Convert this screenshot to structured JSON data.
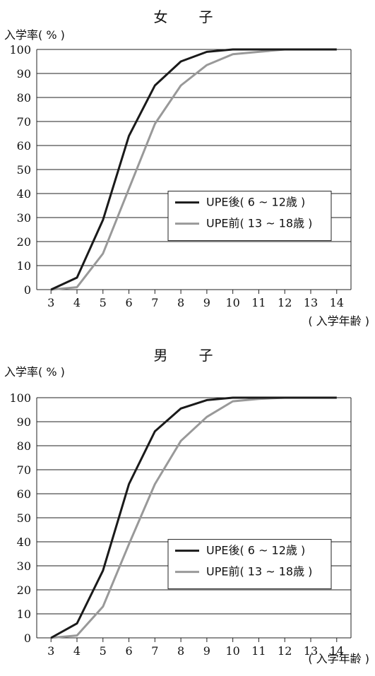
{
  "chart_data": [
    {
      "id": "female",
      "type": "line",
      "title": "女　子",
      "ylabel": "入学率( % )",
      "xlabel": "( 入学年齢 )",
      "ylim": [
        0,
        100
      ],
      "yticks": [
        0,
        10,
        20,
        30,
        40,
        50,
        60,
        70,
        80,
        90,
        100
      ],
      "x": [
        3,
        4,
        5,
        6,
        7,
        8,
        9,
        10,
        11,
        12,
        13,
        14
      ],
      "grid": true,
      "legend_position": "right-middle",
      "series": [
        {
          "name": "UPE後( 6 ~ 12歳 )",
          "color": "#1a1a1a",
          "values": [
            0,
            5,
            29,
            64,
            85,
            95,
            99,
            100,
            100,
            100,
            100,
            100
          ]
        },
        {
          "name": "UPE前( 13 ~ 18歳 )",
          "color": "#999999",
          "values": [
            0,
            1,
            15,
            42,
            69,
            85,
            93.5,
            98,
            99,
            100,
            100,
            100
          ]
        }
      ]
    },
    {
      "id": "male",
      "type": "line",
      "title": "男　子",
      "ylabel": "入学率( % )",
      "xlabel": "( 入学年齢 )",
      "ylim": [
        0,
        100
      ],
      "yticks": [
        0,
        10,
        20,
        30,
        40,
        50,
        60,
        70,
        80,
        90,
        100
      ],
      "x": [
        3,
        4,
        5,
        6,
        7,
        8,
        9,
        10,
        11,
        12,
        13,
        14
      ],
      "grid": true,
      "legend_position": "right-middle",
      "series": [
        {
          "name": "UPE後( 6 ~ 12歳 )",
          "color": "#1a1a1a",
          "values": [
            0,
            6,
            28,
            64,
            86,
            95.5,
            99,
            100,
            100,
            100,
            100,
            100
          ]
        },
        {
          "name": "UPE前( 13 ~ 18歳 )",
          "color": "#999999",
          "values": [
            0,
            1,
            13,
            39,
            64,
            82,
            92,
            98.5,
            99.5,
            100,
            100,
            100
          ]
        }
      ]
    }
  ]
}
